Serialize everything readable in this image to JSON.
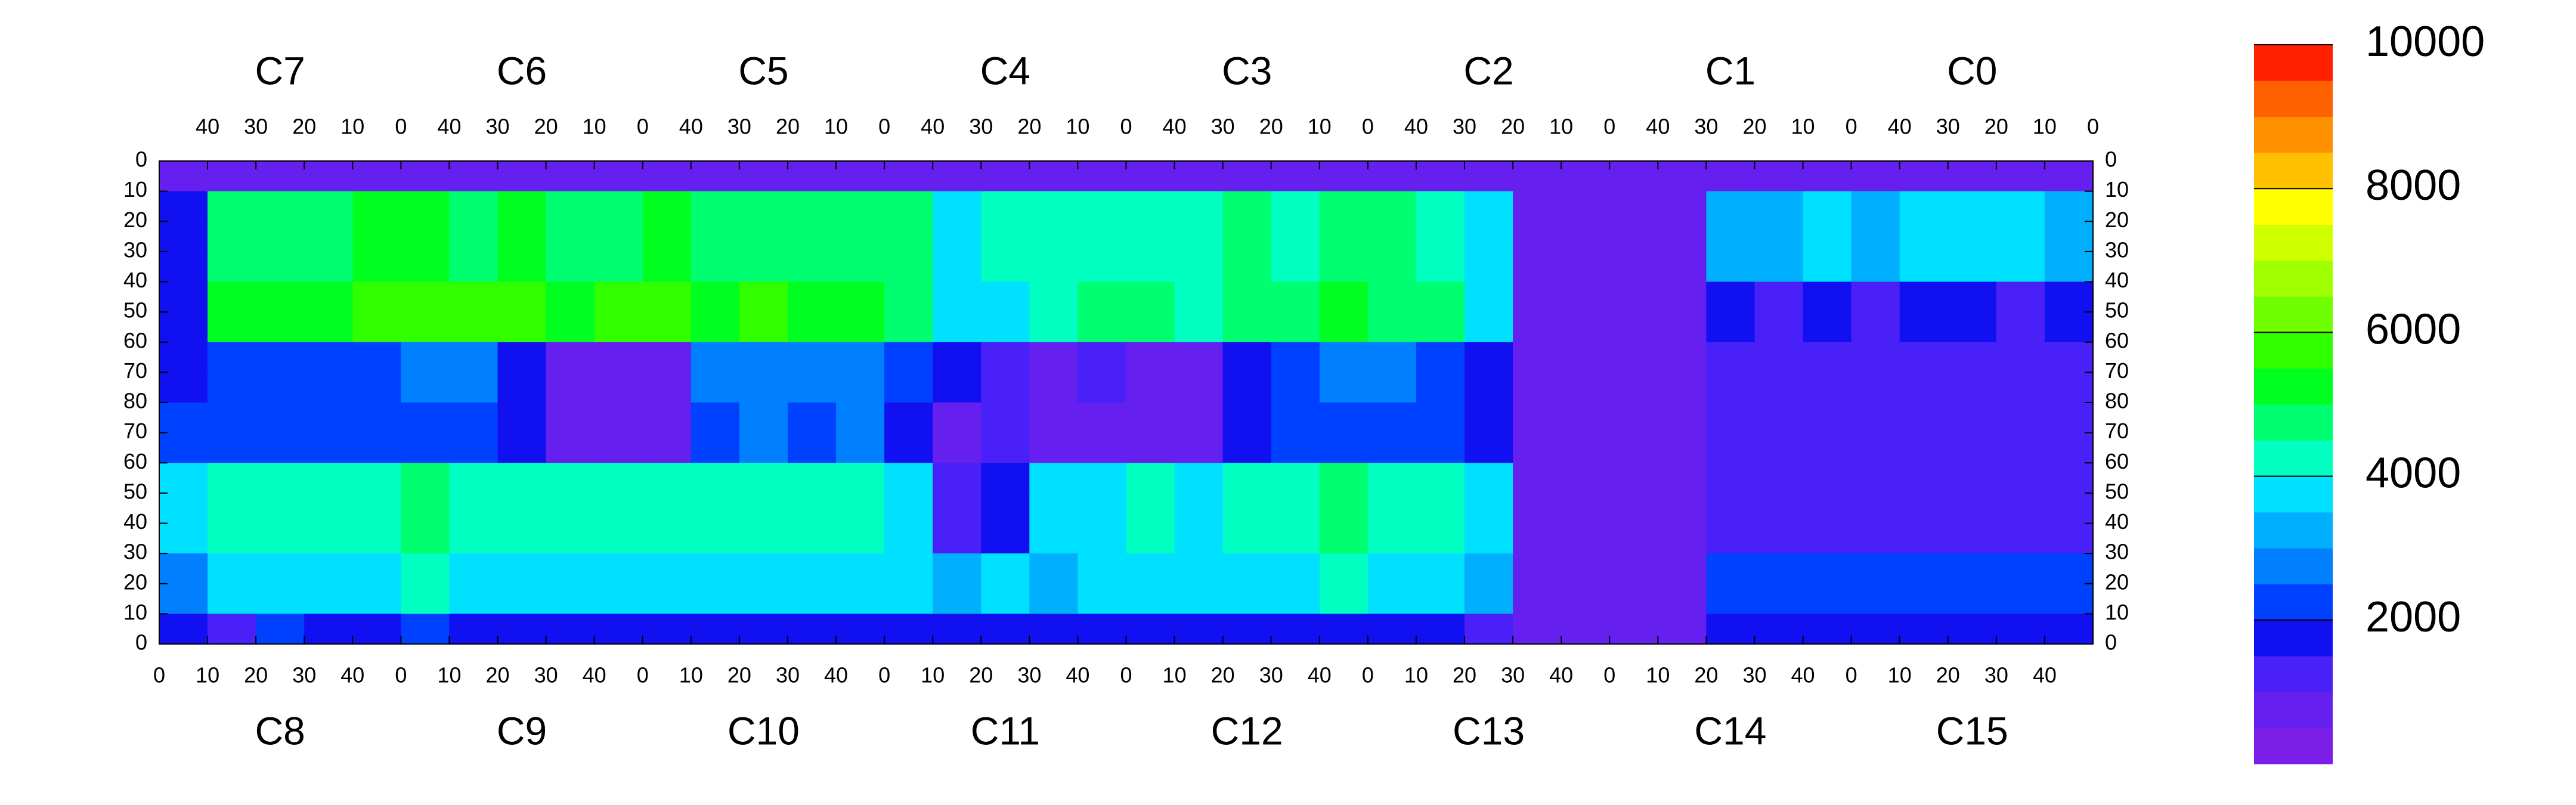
{
  "chart_data": {
    "type": "heatmap",
    "top_labels": [
      "C7",
      "C6",
      "C5",
      "C4",
      "C3",
      "C2",
      "C1",
      "C0"
    ],
    "bottom_labels": [
      "C8",
      "C9",
      "C10",
      "C11",
      "C12",
      "C13",
      "C14",
      "C15"
    ],
    "xlim": [
      0,
      400
    ],
    "ylim": [
      0,
      160
    ],
    "xticks_top": [
      {
        "value": 10,
        "label": "40"
      },
      {
        "value": 20,
        "label": "30"
      },
      {
        "value": 30,
        "label": "20"
      },
      {
        "value": 40,
        "label": "10"
      },
      {
        "value": 50,
        "label": "0"
      },
      {
        "value": 60,
        "label": "40"
      },
      {
        "value": 70,
        "label": "30"
      },
      {
        "value": 80,
        "label": "20"
      },
      {
        "value": 90,
        "label": "10"
      },
      {
        "value": 100,
        "label": "0"
      },
      {
        "value": 110,
        "label": "40"
      },
      {
        "value": 120,
        "label": "30"
      },
      {
        "value": 130,
        "label": "20"
      },
      {
        "value": 140,
        "label": "10"
      },
      {
        "value": 150,
        "label": "0"
      },
      {
        "value": 160,
        "label": "40"
      },
      {
        "value": 170,
        "label": "30"
      },
      {
        "value": 180,
        "label": "20"
      },
      {
        "value": 190,
        "label": "10"
      },
      {
        "value": 200,
        "label": "0"
      },
      {
        "value": 210,
        "label": "40"
      },
      {
        "value": 220,
        "label": "30"
      },
      {
        "value": 230,
        "label": "20"
      },
      {
        "value": 240,
        "label": "10"
      },
      {
        "value": 250,
        "label": "0"
      },
      {
        "value": 260,
        "label": "40"
      },
      {
        "value": 270,
        "label": "30"
      },
      {
        "value": 280,
        "label": "20"
      },
      {
        "value": 290,
        "label": "10"
      },
      {
        "value": 300,
        "label": "0"
      },
      {
        "value": 310,
        "label": "40"
      },
      {
        "value": 320,
        "label": "30"
      },
      {
        "value": 330,
        "label": "20"
      },
      {
        "value": 340,
        "label": "10"
      },
      {
        "value": 350,
        "label": "0"
      },
      {
        "value": 360,
        "label": "40"
      },
      {
        "value": 370,
        "label": "30"
      },
      {
        "value": 380,
        "label": "20"
      },
      {
        "value": 390,
        "label": "10"
      },
      {
        "value": 400,
        "label": "0"
      }
    ],
    "xticks_bottom": [
      0,
      10,
      20,
      30,
      40,
      {
        "value": 50,
        "label": "0"
      },
      {
        "value": 60,
        "label": "10"
      },
      {
        "value": 70,
        "label": "20"
      },
      {
        "value": 80,
        "label": "30"
      },
      {
        "value": 90,
        "label": "40"
      },
      {
        "value": 100,
        "label": "0"
      },
      {
        "value": 110,
        "label": "10"
      },
      {
        "value": 120,
        "label": "20"
      },
      {
        "value": 130,
        "label": "30"
      },
      {
        "value": 140,
        "label": "40"
      },
      {
        "value": 150,
        "label": "0"
      },
      {
        "value": 160,
        "label": "10"
      },
      {
        "value": 170,
        "label": "20"
      },
      {
        "value": 180,
        "label": "30"
      },
      {
        "value": 190,
        "label": "40"
      },
      {
        "value": 200,
        "label": "0"
      },
      {
        "value": 210,
        "label": "10"
      },
      {
        "value": 220,
        "label": "20"
      },
      {
        "value": 230,
        "label": "30"
      },
      {
        "value": 240,
        "label": "40"
      },
      {
        "value": 250,
        "label": "0"
      },
      {
        "value": 260,
        "label": "10"
      },
      {
        "value": 270,
        "label": "20"
      },
      {
        "value": 280,
        "label": "30"
      },
      {
        "value": 290,
        "label": "40"
      },
      {
        "value": 300,
        "label": "0"
      },
      {
        "value": 310,
        "label": "10"
      },
      {
        "value": 320,
        "label": "20"
      },
      {
        "value": 330,
        "label": "30"
      },
      {
        "value": 340,
        "label": "40"
      },
      {
        "value": 350,
        "label": "0"
      },
      {
        "value": 360,
        "label": "10"
      },
      {
        "value": 370,
        "label": "20"
      },
      {
        "value": 380,
        "label": "30"
      },
      {
        "value": 390,
        "label": "40"
      }
    ],
    "yticks": [
      0,
      10,
      20,
      30,
      40,
      50,
      60,
      70,
      80,
      {
        "value": 90,
        "label": "70"
      },
      {
        "value": 100,
        "label": "60"
      },
      {
        "value": 110,
        "label": "50"
      },
      {
        "value": 120,
        "label": "40"
      },
      {
        "value": 130,
        "label": "30"
      },
      {
        "value": 140,
        "label": "20"
      },
      {
        "value": 150,
        "label": "10"
      },
      {
        "value": 160,
        "label": "0"
      }
    ],
    "z": [
      [
        600,
        600,
        600,
        600,
        600,
        600,
        600,
        600,
        600,
        600,
        600,
        600,
        600,
        600,
        600,
        600,
        600,
        600,
        600,
        600,
        600,
        600,
        600,
        600,
        600,
        600,
        600,
        600,
        600,
        600,
        600,
        600,
        600,
        600,
        600,
        600,
        600,
        600,
        600,
        800
      ],
      [
        1500,
        4500,
        4800,
        4800,
        5000,
        5200,
        4800,
        5000,
        4500,
        4800,
        5000,
        4500,
        4800,
        4500,
        4500,
        4500,
        3800,
        4000,
        4000,
        4200,
        4200,
        4000,
        4500,
        4200,
        4800,
        4500,
        4200,
        3500,
        600,
        500,
        500,
        600,
        3000,
        3200,
        3500,
        3200,
        3500,
        3800,
        3500,
        3200
      ],
      [
        1500,
        4500,
        4800,
        4800,
        5000,
        5200,
        4800,
        5000,
        4500,
        4800,
        5000,
        4500,
        4800,
        4500,
        4500,
        4500,
        3800,
        4000,
        4000,
        4200,
        4200,
        4000,
        4500,
        4200,
        4800,
        4500,
        4200,
        3500,
        600,
        500,
        500,
        600,
        3000,
        3200,
        3500,
        3200,
        3500,
        3800,
        3500,
        3200
      ],
      [
        1500,
        4500,
        4800,
        4800,
        5000,
        5200,
        4800,
        5000,
        4500,
        4800,
        5000,
        4500,
        4800,
        4500,
        4500,
        4500,
        3800,
        4000,
        4000,
        4200,
        4200,
        4000,
        4500,
        4200,
        4800,
        4500,
        4200,
        3500,
        600,
        500,
        500,
        600,
        3000,
        3200,
        3500,
        3200,
        3500,
        3800,
        3500,
        3200
      ],
      [
        1500,
        5000,
        5200,
        5200,
        5500,
        5800,
        5500,
        5500,
        5200,
        5500,
        5500,
        5200,
        5500,
        5200,
        5000,
        4800,
        3500,
        3800,
        4000,
        4500,
        4500,
        4200,
        4800,
        4500,
        5000,
        4800,
        4500,
        3800,
        600,
        500,
        500,
        600,
        1500,
        1400,
        1500,
        1400,
        1500,
        1500,
        1400,
        1500
      ],
      [
        1500,
        5000,
        5200,
        5200,
        5500,
        5800,
        5500,
        5500,
        5200,
        5500,
        5500,
        5200,
        5500,
        5200,
        5000,
        4800,
        3500,
        3800,
        4000,
        4500,
        4500,
        4200,
        4800,
        4500,
        5000,
        4800,
        4500,
        3800,
        600,
        500,
        500,
        600,
        1500,
        1400,
        1500,
        1400,
        1500,
        1500,
        1400,
        1500
      ],
      [
        1800,
        2200,
        2200,
        2000,
        2200,
        2500,
        2500,
        1500,
        800,
        800,
        800,
        2500,
        2800,
        2500,
        2800,
        2000,
        1500,
        1200,
        800,
        1000,
        800,
        900,
        1800,
        2000,
        2500,
        2500,
        2200,
        1800,
        600,
        500,
        500,
        500,
        1200,
        1300,
        1300,
        1300,
        1300,
        1200,
        1200,
        1300
      ],
      [
        1800,
        2200,
        2200,
        2000,
        2200,
        2500,
        2500,
        1500,
        800,
        800,
        800,
        2500,
        2800,
        2500,
        2800,
        2000,
        1500,
        1200,
        800,
        1000,
        800,
        900,
        1800,
        2000,
        2500,
        2500,
        2200,
        1800,
        600,
        500,
        500,
        500,
        1200,
        1300,
        1300,
        1300,
        1300,
        1200,
        1200,
        1300
      ],
      [
        2000,
        2200,
        2000,
        2000,
        2000,
        2200,
        2000,
        1500,
        800,
        800,
        800,
        2200,
        2500,
        2200,
        2500,
        1800,
        800,
        1000,
        900,
        900,
        900,
        800,
        1500,
        2000,
        2200,
        2200,
        2000,
        1800,
        600,
        500,
        500,
        500,
        1000,
        1100,
        1100,
        1100,
        1100,
        1000,
        1000,
        1100
      ],
      [
        2000,
        2200,
        2000,
        2000,
        2000,
        2200,
        2000,
        1500,
        800,
        800,
        800,
        2200,
        2500,
        2200,
        2500,
        1800,
        800,
        1000,
        900,
        900,
        900,
        800,
        1500,
        2000,
        2200,
        2200,
        2000,
        1800,
        600,
        500,
        500,
        500,
        1000,
        1100,
        1100,
        1100,
        1100,
        1000,
        1000,
        1100
      ],
      [
        3500,
        4000,
        4200,
        4000,
        4200,
        4500,
        4200,
        4000,
        4200,
        4200,
        4000,
        4200,
        4000,
        4000,
        4200,
        3500,
        1000,
        1500,
        3500,
        3800,
        4000,
        3800,
        4200,
        4000,
        4500,
        4200,
        4000,
        3500,
        600,
        500,
        500,
        500,
        1300,
        1200,
        1300,
        1300,
        1300,
        1200,
        1200,
        1300
      ],
      [
        3500,
        4000,
        4200,
        4000,
        4200,
        4500,
        4200,
        4000,
        4200,
        4200,
        4000,
        4200,
        4000,
        4000,
        4200,
        3500,
        1000,
        1500,
        3500,
        3800,
        4000,
        3800,
        4200,
        4000,
        4500,
        4200,
        4000,
        3500,
        600,
        500,
        500,
        500,
        1300,
        1200,
        1300,
        1300,
        1300,
        1200,
        1200,
        1300
      ],
      [
        3500,
        4000,
        4200,
        4000,
        4200,
        4500,
        4200,
        4000,
        4200,
        4200,
        4000,
        4200,
        4000,
        4000,
        4200,
        3500,
        1000,
        1500,
        3500,
        3800,
        4000,
        3800,
        4200,
        4000,
        4500,
        4200,
        4000,
        3500,
        600,
        500,
        500,
        500,
        1300,
        1200,
        1300,
        1300,
        1300,
        1200,
        1200,
        1300
      ],
      [
        2500,
        3500,
        3800,
        3500,
        3800,
        4000,
        3800,
        3500,
        3800,
        3800,
        3800,
        3500,
        3800,
        3500,
        3800,
        3500,
        3200,
        3500,
        3200,
        3500,
        3800,
        3500,
        3800,
        3500,
        4000,
        3800,
        3500,
        3200,
        600,
        500,
        500,
        600,
        2000,
        2200,
        2000,
        2000,
        2200,
        2000,
        2000,
        2200
      ],
      [
        2500,
        3500,
        3800,
        3500,
        3800,
        4000,
        3800,
        3500,
        3800,
        3800,
        3800,
        3500,
        3800,
        3500,
        3800,
        3500,
        3200,
        3500,
        3200,
        3500,
        3800,
        3500,
        3800,
        3500,
        4000,
        3800,
        3500,
        3200,
        600,
        500,
        500,
        600,
        2000,
        2200,
        2000,
        2000,
        2200,
        2000,
        2000,
        2200
      ],
      [
        1500,
        1200,
        2000,
        1500,
        1800,
        2000,
        1500,
        1800,
        1500,
        1800,
        1800,
        1500,
        1800,
        1500,
        1800,
        1800,
        1500,
        1800,
        1500,
        1800,
        1800,
        1500,
        1800,
        1500,
        1800,
        1800,
        1500,
        1200,
        600,
        500,
        500,
        600,
        1800,
        1500,
        1800,
        1800,
        1500,
        1800,
        1500,
        1800
      ]
    ],
    "colorbar": {
      "zlim": [
        0,
        10000
      ],
      "zticks": [
        2000,
        4000,
        6000,
        8000,
        10000
      ],
      "colors": [
        "#7a1ee8",
        "#6520f0",
        "#4a20f8",
        "#1010f0",
        "#0040ff",
        "#0080ff",
        "#00b0ff",
        "#00e0ff",
        "#00ffc0",
        "#00ff70",
        "#00ff20",
        "#30ff00",
        "#70ff00",
        "#a0ff00",
        "#d0ff00",
        "#ffff00",
        "#ffc000",
        "#ff9000",
        "#ff6000",
        "#ff2000"
      ]
    }
  }
}
